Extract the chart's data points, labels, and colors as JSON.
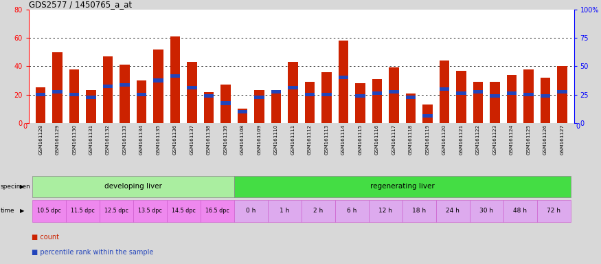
{
  "title": "GDS2577 / 1450765_a_at",
  "samples": [
    "GSM161128",
    "GSM161129",
    "GSM161130",
    "GSM161131",
    "GSM161132",
    "GSM161133",
    "GSM161134",
    "GSM161135",
    "GSM161136",
    "GSM161137",
    "GSM161138",
    "GSM161139",
    "GSM161108",
    "GSM161109",
    "GSM161110",
    "GSM161111",
    "GSM161112",
    "GSM161113",
    "GSM161114",
    "GSM161115",
    "GSM161116",
    "GSM161117",
    "GSM161118",
    "GSM161119",
    "GSM161120",
    "GSM161121",
    "GSM161122",
    "GSM161123",
    "GSM161124",
    "GSM161125",
    "GSM161126",
    "GSM161127"
  ],
  "counts": [
    25,
    50,
    38,
    23,
    47,
    41,
    30,
    52,
    61,
    43,
    22,
    27,
    10,
    23,
    22,
    43,
    29,
    36,
    58,
    28,
    31,
    39,
    21,
    13,
    44,
    37,
    29,
    29,
    34,
    38,
    32,
    40
  ],
  "percentile_ranks": [
    20,
    22,
    20,
    18,
    26,
    27,
    20,
    30,
    33,
    25,
    19,
    14,
    8,
    18,
    22,
    25,
    20,
    20,
    32,
    19,
    21,
    22,
    18,
    5,
    24,
    21,
    22,
    19,
    21,
    20,
    19,
    22
  ],
  "ylim_left": [
    0,
    80
  ],
  "ylim_right": [
    0,
    100
  ],
  "yticks_left": [
    0,
    20,
    40,
    60,
    80
  ],
  "yticks_right": [
    0,
    25,
    50,
    75,
    100
  ],
  "ytick_right_labels": [
    "0",
    "25",
    "50",
    "75",
    "100%"
  ],
  "bar_color": "#cc2200",
  "marker_color": "#2244bb",
  "bg_color": "#d8d8d8",
  "plot_bg": "#ffffff",
  "xtick_bg": "#cccccc",
  "dev_specimen_color": "#aaeea0",
  "reg_specimen_color": "#44dd44",
  "time_dev_color": "#ee88ee",
  "time_reg_color": "#ddaaee",
  "time_dev_border": "#cc55cc",
  "time_reg_border": "#cc55cc",
  "dev_time_labels": [
    "10.5 dpc",
    "11.5 dpc",
    "12.5 dpc",
    "13.5 dpc",
    "14.5 dpc",
    "16.5 dpc"
  ],
  "reg_time_labels": [
    "0 h",
    "1 h",
    "2 h",
    "6 h",
    "12 h",
    "18 h",
    "24 h",
    "30 h",
    "48 h",
    "72 h"
  ],
  "dev_sample_count": 12,
  "reg_sample_count": 20
}
